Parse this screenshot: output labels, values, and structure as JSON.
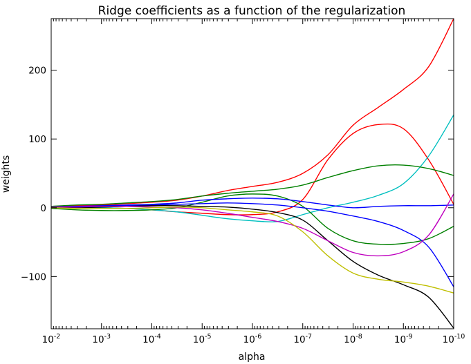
{
  "chart_data": {
    "type": "line",
    "title": "Ridge coefficients as a function of the regularization",
    "xlabel": "alpha",
    "ylabel": "weights",
    "x_scale": "log",
    "x_reversed": true,
    "xlim": [
      0.01,
      1e-10
    ],
    "ylim": [
      -176,
      275
    ],
    "grid": false,
    "x_ticks": [
      {
        "value": 0.01,
        "base": "10",
        "exp": "-2"
      },
      {
        "value": 0.001,
        "base": "10",
        "exp": "-3"
      },
      {
        "value": 0.0001,
        "base": "10",
        "exp": "-4"
      },
      {
        "value": 1e-05,
        "base": "10",
        "exp": "-5"
      },
      {
        "value": 1e-06,
        "base": "10",
        "exp": "-6"
      },
      {
        "value": 1e-07,
        "base": "10",
        "exp": "-7"
      },
      {
        "value": 1e-08,
        "base": "10",
        "exp": "-8"
      },
      {
        "value": 1e-09,
        "base": "10",
        "exp": "-9"
      },
      {
        "value": 1e-10,
        "base": "10",
        "exp": "-10"
      }
    ],
    "y_ticks": [
      {
        "value": 200,
        "label": "200"
      },
      {
        "value": 100,
        "label": "100"
      },
      {
        "value": 0,
        "label": "0"
      },
      {
        "value": -100,
        "label": "−100"
      }
    ],
    "x": [
      0.01,
      0.00316,
      0.001,
      0.000316,
      0.0001,
      3.16e-05,
      1e-05,
      3.16e-06,
      1e-06,
      3.16e-07,
      1e-07,
      3.16e-08,
      1e-08,
      3.16e-09,
      1e-09,
      3.16e-10,
      1e-10
    ],
    "series": [
      {
        "color": "#ff0000",
        "values": [
          2,
          3,
          4,
          6,
          8,
          11,
          17,
          25,
          31,
          37,
          50,
          77,
          120,
          146,
          172,
          205,
          275
        ]
      },
      {
        "color": "#ff0000",
        "values": [
          1,
          1,
          0,
          -1,
          -3,
          -6,
          -8,
          -10,
          -10,
          -6,
          12,
          70,
          108,
          121,
          115,
          70,
          5
        ]
      },
      {
        "color": "#00bfbf",
        "values": [
          0,
          0,
          0,
          -1,
          -3,
          -6,
          -11,
          -16,
          -19,
          -20,
          -10,
          0,
          8,
          18,
          35,
          75,
          135
        ]
      },
      {
        "color": "#008000",
        "values": [
          2,
          4,
          5,
          7,
          9,
          12,
          17,
          21,
          24,
          27,
          33,
          44,
          54,
          61,
          62,
          57,
          47
        ]
      },
      {
        "color": "#008000",
        "values": [
          -1,
          -3,
          -4,
          -4,
          -3,
          0,
          8,
          17,
          20,
          17,
          2,
          -30,
          -48,
          -53,
          -52,
          -45,
          -27
        ]
      },
      {
        "color": "#0000ff",
        "values": [
          1,
          2,
          3,
          4,
          5,
          7,
          11,
          13,
          14,
          13,
          9,
          4,
          0,
          2,
          3,
          3,
          4
        ]
      },
      {
        "color": "#0000ff",
        "values": [
          1,
          2,
          2,
          3,
          4,
          5,
          6,
          7,
          6,
          4,
          0,
          -5,
          -12,
          -20,
          -33,
          -57,
          -115
        ]
      },
      {
        "color": "#000000",
        "values": [
          0,
          0,
          1,
          2,
          3,
          3,
          2,
          1,
          -2,
          -7,
          -18,
          -48,
          -78,
          -98,
          -112,
          -130,
          -175
        ]
      },
      {
        "color": "#bf00bf",
        "values": [
          1,
          1,
          2,
          2,
          1,
          0,
          -3,
          -8,
          -14,
          -20,
          -30,
          -48,
          -65,
          -70,
          -64,
          -40,
          20
        ]
      },
      {
        "color": "#bfbf00",
        "values": [
          0,
          -1,
          -1,
          -1,
          0,
          1,
          0,
          -3,
          -6,
          -12,
          -35,
          -70,
          -95,
          -104,
          -108,
          -114,
          -124
        ]
      }
    ]
  }
}
